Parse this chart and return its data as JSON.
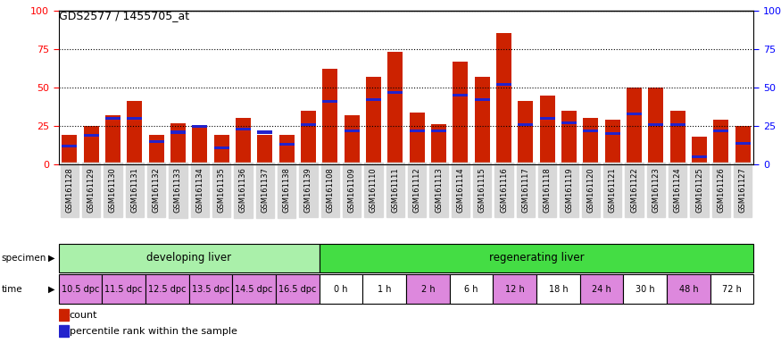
{
  "title": "GDS2577 / 1455705_at",
  "samples": [
    "GSM161128",
    "GSM161129",
    "GSM161130",
    "GSM161131",
    "GSM161132",
    "GSM161133",
    "GSM161134",
    "GSM161135",
    "GSM161136",
    "GSM161137",
    "GSM161138",
    "GSM161139",
    "GSM161108",
    "GSM161109",
    "GSM161110",
    "GSM161111",
    "GSM161112",
    "GSM161113",
    "GSM161114",
    "GSM161115",
    "GSM161116",
    "GSM161117",
    "GSM161118",
    "GSM161119",
    "GSM161120",
    "GSM161121",
    "GSM161122",
    "GSM161123",
    "GSM161124",
    "GSM161125",
    "GSM161126",
    "GSM161127"
  ],
  "counts": [
    19,
    25,
    32,
    41,
    19,
    27,
    25,
    19,
    30,
    19,
    19,
    35,
    62,
    32,
    57,
    73,
    34,
    26,
    67,
    57,
    85,
    41,
    45,
    35,
    30,
    29,
    50,
    50,
    35,
    18,
    29,
    25
  ],
  "percentiles": [
    12,
    19,
    30,
    30,
    15,
    21,
    25,
    11,
    23,
    21,
    13,
    26,
    41,
    22,
    42,
    47,
    22,
    22,
    45,
    42,
    52,
    26,
    30,
    27,
    22,
    20,
    33,
    26,
    26,
    5,
    22,
    14
  ],
  "specimen_groups": [
    {
      "label": "developing liver",
      "start": 0,
      "end": 12,
      "color": "#aaf0aa"
    },
    {
      "label": "regenerating liver",
      "start": 12,
      "end": 32,
      "color": "#44dd44"
    }
  ],
  "time_labels": [
    {
      "label": "10.5 dpc",
      "start": 0,
      "end": 2,
      "color": "#dd88dd"
    },
    {
      "label": "11.5 dpc",
      "start": 2,
      "end": 4,
      "color": "#dd88dd"
    },
    {
      "label": "12.5 dpc",
      "start": 4,
      "end": 6,
      "color": "#dd88dd"
    },
    {
      "label": "13.5 dpc",
      "start": 6,
      "end": 8,
      "color": "#dd88dd"
    },
    {
      "label": "14.5 dpc",
      "start": 8,
      "end": 10,
      "color": "#dd88dd"
    },
    {
      "label": "16.5 dpc",
      "start": 10,
      "end": 12,
      "color": "#dd88dd"
    },
    {
      "label": "0 h",
      "start": 12,
      "end": 14,
      "color": "#ffffff"
    },
    {
      "label": "1 h",
      "start": 14,
      "end": 16,
      "color": "#ffffff"
    },
    {
      "label": "2 h",
      "start": 16,
      "end": 18,
      "color": "#dd88dd"
    },
    {
      "label": "6 h",
      "start": 18,
      "end": 20,
      "color": "#ffffff"
    },
    {
      "label": "12 h",
      "start": 20,
      "end": 22,
      "color": "#dd88dd"
    },
    {
      "label": "18 h",
      "start": 22,
      "end": 24,
      "color": "#ffffff"
    },
    {
      "label": "24 h",
      "start": 24,
      "end": 26,
      "color": "#dd88dd"
    },
    {
      "label": "30 h",
      "start": 26,
      "end": 28,
      "color": "#ffffff"
    },
    {
      "label": "48 h",
      "start": 28,
      "end": 30,
      "color": "#dd88dd"
    },
    {
      "label": "72 h",
      "start": 30,
      "end": 32,
      "color": "#ffffff"
    }
  ],
  "bar_color": "#cc2200",
  "percentile_color": "#2222cc",
  "ylim": [
    0,
    100
  ],
  "n_samples": 32,
  "xtick_bg": "#d8d8d8"
}
